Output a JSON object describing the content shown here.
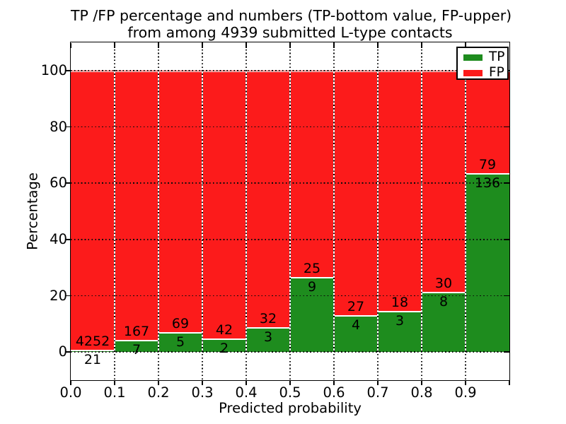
{
  "chart_data": {
    "type": "bar",
    "subtype": "stacked-percentage-histogram",
    "title": "TP /FP percentage and numbers (TP-bottom value, FP-upper) from among 4939 submitted L-type contacts",
    "title_lines": [
      "TP /FP percentage and numbers (TP-bottom value, FP-upper)",
      "from among 4939 submitted L-type contacts"
    ],
    "xlabel": "Predicted probability",
    "ylabel": "Percentage",
    "total_submitted_contacts": 4939,
    "xlim": [
      0.0,
      1.0
    ],
    "ylim": [
      -10,
      110
    ],
    "bin_edges": [
      0.0,
      0.1,
      0.2,
      0.3,
      0.4,
      0.5,
      0.6,
      0.7,
      0.8,
      0.9,
      1.0
    ],
    "xtick_labels": [
      "0.0",
      "0.1",
      "0.2",
      "0.3",
      "0.4",
      "0.5",
      "0.6",
      "0.7",
      "0.8",
      "0.9"
    ],
    "ytick_values": [
      0,
      20,
      40,
      60,
      80,
      100
    ],
    "ytick_labels": [
      "0",
      "20",
      "40",
      "60",
      "80",
      "100"
    ],
    "grid": "dotted-black-over-bars",
    "bar_edge_color": "#ffffff",
    "series": [
      {
        "name": "TP",
        "color": "#1e8c1e",
        "counts": [
          21,
          7,
          5,
          2,
          3,
          9,
          4,
          3,
          8,
          136
        ]
      },
      {
        "name": "FP",
        "color": "#fc1b1b",
        "counts": [
          4252,
          167,
          69,
          42,
          32,
          25,
          27,
          18,
          30,
          79
        ]
      }
    ],
    "legend": {
      "position": "upper right",
      "entries": [
        {
          "label": "TP",
          "color": "#1e8c1e"
        },
        {
          "label": "FP",
          "color": "#fc1b1b"
        }
      ]
    }
  }
}
